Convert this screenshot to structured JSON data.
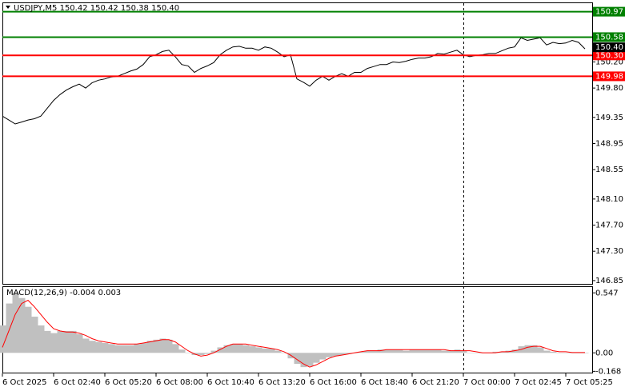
{
  "chart_data": [
    {
      "type": "line",
      "title": "USDJPY,M5  150.42 150.42 150.38 150.40",
      "categories": [
        "6 Oct 2025",
        null,
        null,
        null,
        null,
        null,
        null,
        null,
        "6 Oct 02:40",
        null,
        null,
        null,
        null,
        null,
        null,
        null,
        "6 Oct 05:20",
        null,
        null,
        null,
        null,
        null,
        null,
        null,
        "6 Oct 08:00",
        null,
        null,
        null,
        null,
        null,
        null,
        null,
        "6 Oct 10:40",
        null,
        null,
        null,
        null,
        null,
        null,
        null,
        "6 Oct 13:20",
        null,
        null,
        null,
        null,
        null,
        null,
        null,
        "6 Oct 16:00",
        null,
        null,
        null,
        null,
        null,
        null,
        null,
        "6 Oct 18:40",
        null,
        null,
        null,
        null,
        null,
        null,
        null,
        "6 Oct 21:20",
        null,
        null,
        null,
        null,
        null,
        null,
        null,
        "7 Oct 00:00",
        null,
        null,
        null,
        null,
        null,
        null,
        null,
        "7 Oct 02:45",
        null,
        null,
        null,
        null,
        null,
        null,
        null,
        "7 Oct 05:25",
        null,
        null,
        null
      ],
      "values": [
        149.37,
        149.31,
        149.25,
        149.28,
        149.31,
        149.33,
        149.37,
        149.49,
        149.61,
        149.7,
        149.77,
        149.82,
        149.86,
        149.8,
        149.88,
        149.92,
        149.94,
        149.97,
        149.98,
        150.02,
        150.06,
        150.09,
        150.16,
        150.28,
        150.31,
        150.36,
        150.38,
        150.28,
        150.16,
        150.14,
        150.04,
        150.1,
        150.14,
        150.19,
        150.31,
        150.38,
        150.43,
        150.44,
        150.41,
        150.41,
        150.38,
        150.43,
        150.41,
        150.35,
        150.28,
        150.31,
        149.94,
        149.89,
        149.83,
        149.92,
        149.98,
        149.92,
        149.98,
        150.02,
        149.98,
        150.04,
        150.04,
        150.1,
        150.13,
        150.16,
        150.16,
        150.2,
        150.19,
        150.21,
        150.24,
        150.26,
        150.26,
        150.28,
        150.33,
        150.32,
        150.35,
        150.38,
        150.31,
        150.28,
        150.3,
        150.31,
        150.33,
        150.33,
        150.37,
        150.41,
        150.43,
        150.57,
        150.53,
        150.55,
        150.57,
        150.46,
        150.5,
        150.48,
        150.49,
        150.53,
        150.5,
        150.4
      ],
      "color": "#000000",
      "ylim": [
        146.8,
        151.1
      ],
      "yticks": [
        {
          "value": 150.2,
          "label": "150.20"
        },
        {
          "value": 149.8,
          "label": "149.80"
        },
        149.35,
        148.95,
        148.55,
        {
          "value": 148.1,
          "label": "148.10"
        },
        {
          "value": 147.7,
          "label": "147.70"
        },
        {
          "value": 147.3,
          "label": "147.30"
        },
        146.85
      ],
      "levels": [
        {
          "value": 150.97,
          "color": "#008000"
        },
        {
          "value": 150.58,
          "color": "#008000"
        },
        {
          "value": 150.3,
          "label": "150.30",
          "color": "#ff0000"
        },
        {
          "value": 149.98,
          "color": "#ff0000"
        }
      ],
      "current_price": {
        "value": 150.4,
        "label": "150.40"
      }
    },
    {
      "type": "macd",
      "title": "MACD(12,26,9) -0.004 0.003",
      "values": [
        0.25,
        0.45,
        0.55,
        0.5,
        0.42,
        0.33,
        0.25,
        0.2,
        0.18,
        0.2,
        0.2,
        0.2,
        0.17,
        0.13,
        0.11,
        0.1,
        0.09,
        0.08,
        0.07,
        0.07,
        0.07,
        0.08,
        0.09,
        0.11,
        0.12,
        0.13,
        0.12,
        0.08,
        0.03,
        0.0,
        -0.02,
        -0.02,
        -0.01,
        0.02,
        0.05,
        0.07,
        0.08,
        0.08,
        0.07,
        0.06,
        0.05,
        0.04,
        0.04,
        0.02,
        0.0,
        -0.05,
        -0.1,
        -0.13,
        -0.12,
        -0.09,
        -0.06,
        -0.04,
        -0.03,
        -0.02,
        -0.01,
        0.0,
        0.01,
        0.02,
        0.02,
        0.03,
        0.03,
        0.03,
        0.03,
        0.02,
        0.03,
        0.03,
        0.03,
        0.03,
        0.03,
        0.02,
        0.02,
        0.03,
        0.02,
        0.0,
        0.0,
        0.0,
        0.0,
        0.01,
        0.01,
        0.02,
        0.03,
        0.06,
        0.07,
        0.07,
        0.05,
        0.02,
        0.01,
        0.0,
        0.0,
        -0.004,
        -0.004,
        -0.004
      ],
      "signal": [
        0.05,
        0.2,
        0.35,
        0.45,
        0.48,
        0.42,
        0.35,
        0.28,
        0.22,
        0.2,
        0.19,
        0.19,
        0.18,
        0.16,
        0.13,
        0.11,
        0.1,
        0.09,
        0.08,
        0.08,
        0.08,
        0.08,
        0.09,
        0.1,
        0.11,
        0.12,
        0.12,
        0.1,
        0.06,
        0.02,
        -0.01,
        -0.03,
        -0.02,
        0.0,
        0.03,
        0.06,
        0.08,
        0.08,
        0.08,
        0.07,
        0.06,
        0.05,
        0.04,
        0.03,
        0.01,
        -0.02,
        -0.06,
        -0.1,
        -0.13,
        -0.11,
        -0.08,
        -0.05,
        -0.03,
        -0.02,
        -0.01,
        0.0,
        0.01,
        0.02,
        0.02,
        0.02,
        0.03,
        0.03,
        0.03,
        0.03,
        0.03,
        0.03,
        0.03,
        0.03,
        0.03,
        0.03,
        0.02,
        0.02,
        0.02,
        0.02,
        0.01,
        0.0,
        0.0,
        0.0,
        0.01,
        0.01,
        0.02,
        0.03,
        0.05,
        0.06,
        0.06,
        0.04,
        0.02,
        0.01,
        0.01,
        0.003,
        0.003,
        0.003
      ],
      "color": "#c0c0c0",
      "signal_color": "#ff0000",
      "ylim": [
        -0.18,
        0.6
      ],
      "yticks": [
        0.547,
        {
          "value": 0,
          "label": "0.00"
        },
        -0.168
      ]
    }
  ]
}
